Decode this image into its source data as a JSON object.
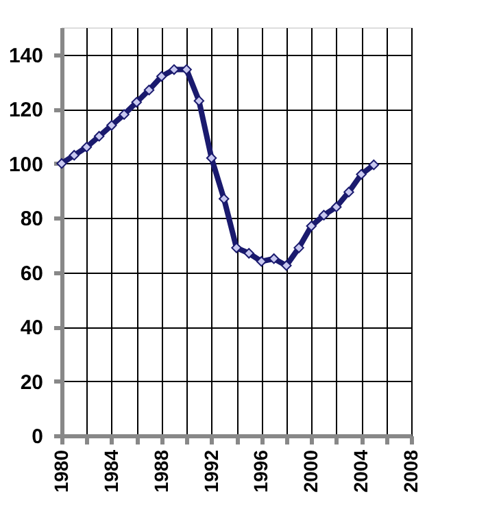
{
  "chart_data": {
    "type": "line",
    "x": [
      1980,
      1981,
      1982,
      1983,
      1984,
      1985,
      1986,
      1987,
      1988,
      1989,
      1990,
      1991,
      1992,
      1993,
      1994,
      1995,
      1996,
      1997,
      1998,
      1999,
      2000,
      2001,
      2002,
      2003,
      2004,
      2005
    ],
    "series": [
      {
        "color": "#1a1a6e",
        "values": [
          100,
          103,
          106,
          110,
          114,
          118,
          122.5,
          127,
          132,
          134.5,
          134.5,
          123,
          102,
          87,
          69,
          67,
          64,
          65,
          62.5,
          69,
          77,
          81,
          84,
          89.5,
          96,
          99.5
        ]
      }
    ],
    "xlim": [
      1980,
      2008
    ],
    "xticks": [
      1980,
      {
        "value": 1982,
        "label": null
      },
      1984,
      {
        "value": 1986,
        "label": null
      },
      1988,
      {
        "value": 1990,
        "label": null
      },
      1992,
      {
        "value": 1994,
        "label": null
      },
      1996,
      {
        "value": 1998,
        "label": null
      },
      2000,
      {
        "value": 2002,
        "label": null
      },
      2004,
      {
        "value": 2006,
        "label": null
      },
      2008
    ],
    "ylim": [
      0,
      150
    ],
    "yticks": [
      0,
      20,
      40,
      60,
      80,
      100,
      120,
      140
    ],
    "grid": true,
    "marker": "diamond",
    "line_style": "solid",
    "legend": false
  }
}
